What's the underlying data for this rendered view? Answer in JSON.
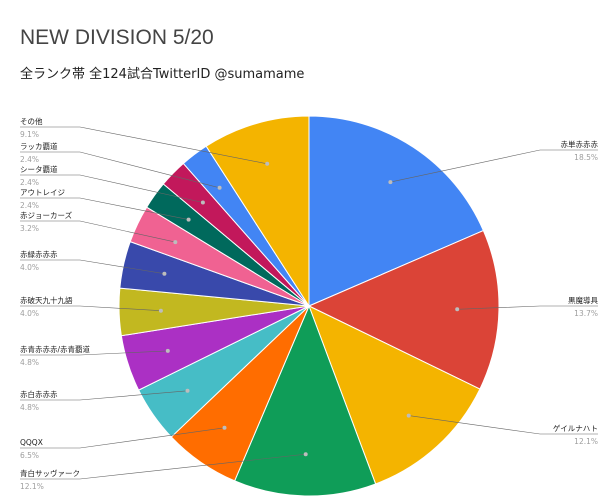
{
  "chart_data": {
    "type": "pie",
    "title": "NEW DIVISION 5/20",
    "subtitle": "全ランク帯 全124試合TwitterID @sumamame",
    "slices": [
      {
        "label": "赤単赤赤赤",
        "value": 18.5,
        "pct_label": "18.5%",
        "color": "#4285f4"
      },
      {
        "label": "黒魔導具",
        "value": 13.7,
        "pct_label": "13.7%",
        "color": "#db4437"
      },
      {
        "label": "ゲイルナハト",
        "value": 12.1,
        "pct_label": "12.1%",
        "color": "#f4b400"
      },
      {
        "label": "青白サッヴァーク",
        "value": 12.1,
        "pct_label": "12.1%",
        "color": "#0f9d58"
      },
      {
        "label": "QQQX",
        "value": 6.5,
        "pct_label": "6.5%",
        "color": "#ff6d00"
      },
      {
        "label": "赤白赤赤赤",
        "value": 4.8,
        "pct_label": "4.8%",
        "color": "#46bdc6"
      },
      {
        "label": "赤青赤赤赤/赤青覇道",
        "value": 4.8,
        "pct_label": "4.8%",
        "color": "#ab30c4"
      },
      {
        "label": "赤破天九十九語",
        "value": 4.0,
        "pct_label": "4.0%",
        "color": "#c2b820"
      },
      {
        "label": "赤緑赤赤赤",
        "value": 4.0,
        "pct_label": "4.0%",
        "color": "#3949ab"
      },
      {
        "label": "赤ジョーカーズ",
        "value": 3.2,
        "pct_label": "3.2%",
        "color": "#f06292"
      },
      {
        "label": "アウトレイジ",
        "value": 2.4,
        "pct_label": "2.4%",
        "color": "#00695c"
      },
      {
        "label": "シータ覇道",
        "value": 2.4,
        "pct_label": "2.4%",
        "color": "#c2185b"
      },
      {
        "label": "ラッカ覇道",
        "value": 2.4,
        "pct_label": "2.4%",
        "color": "#4285f4"
      },
      {
        "label": "その他",
        "value": 9.1,
        "pct_label": "9.1%",
        "color": "#f4b400"
      }
    ]
  }
}
